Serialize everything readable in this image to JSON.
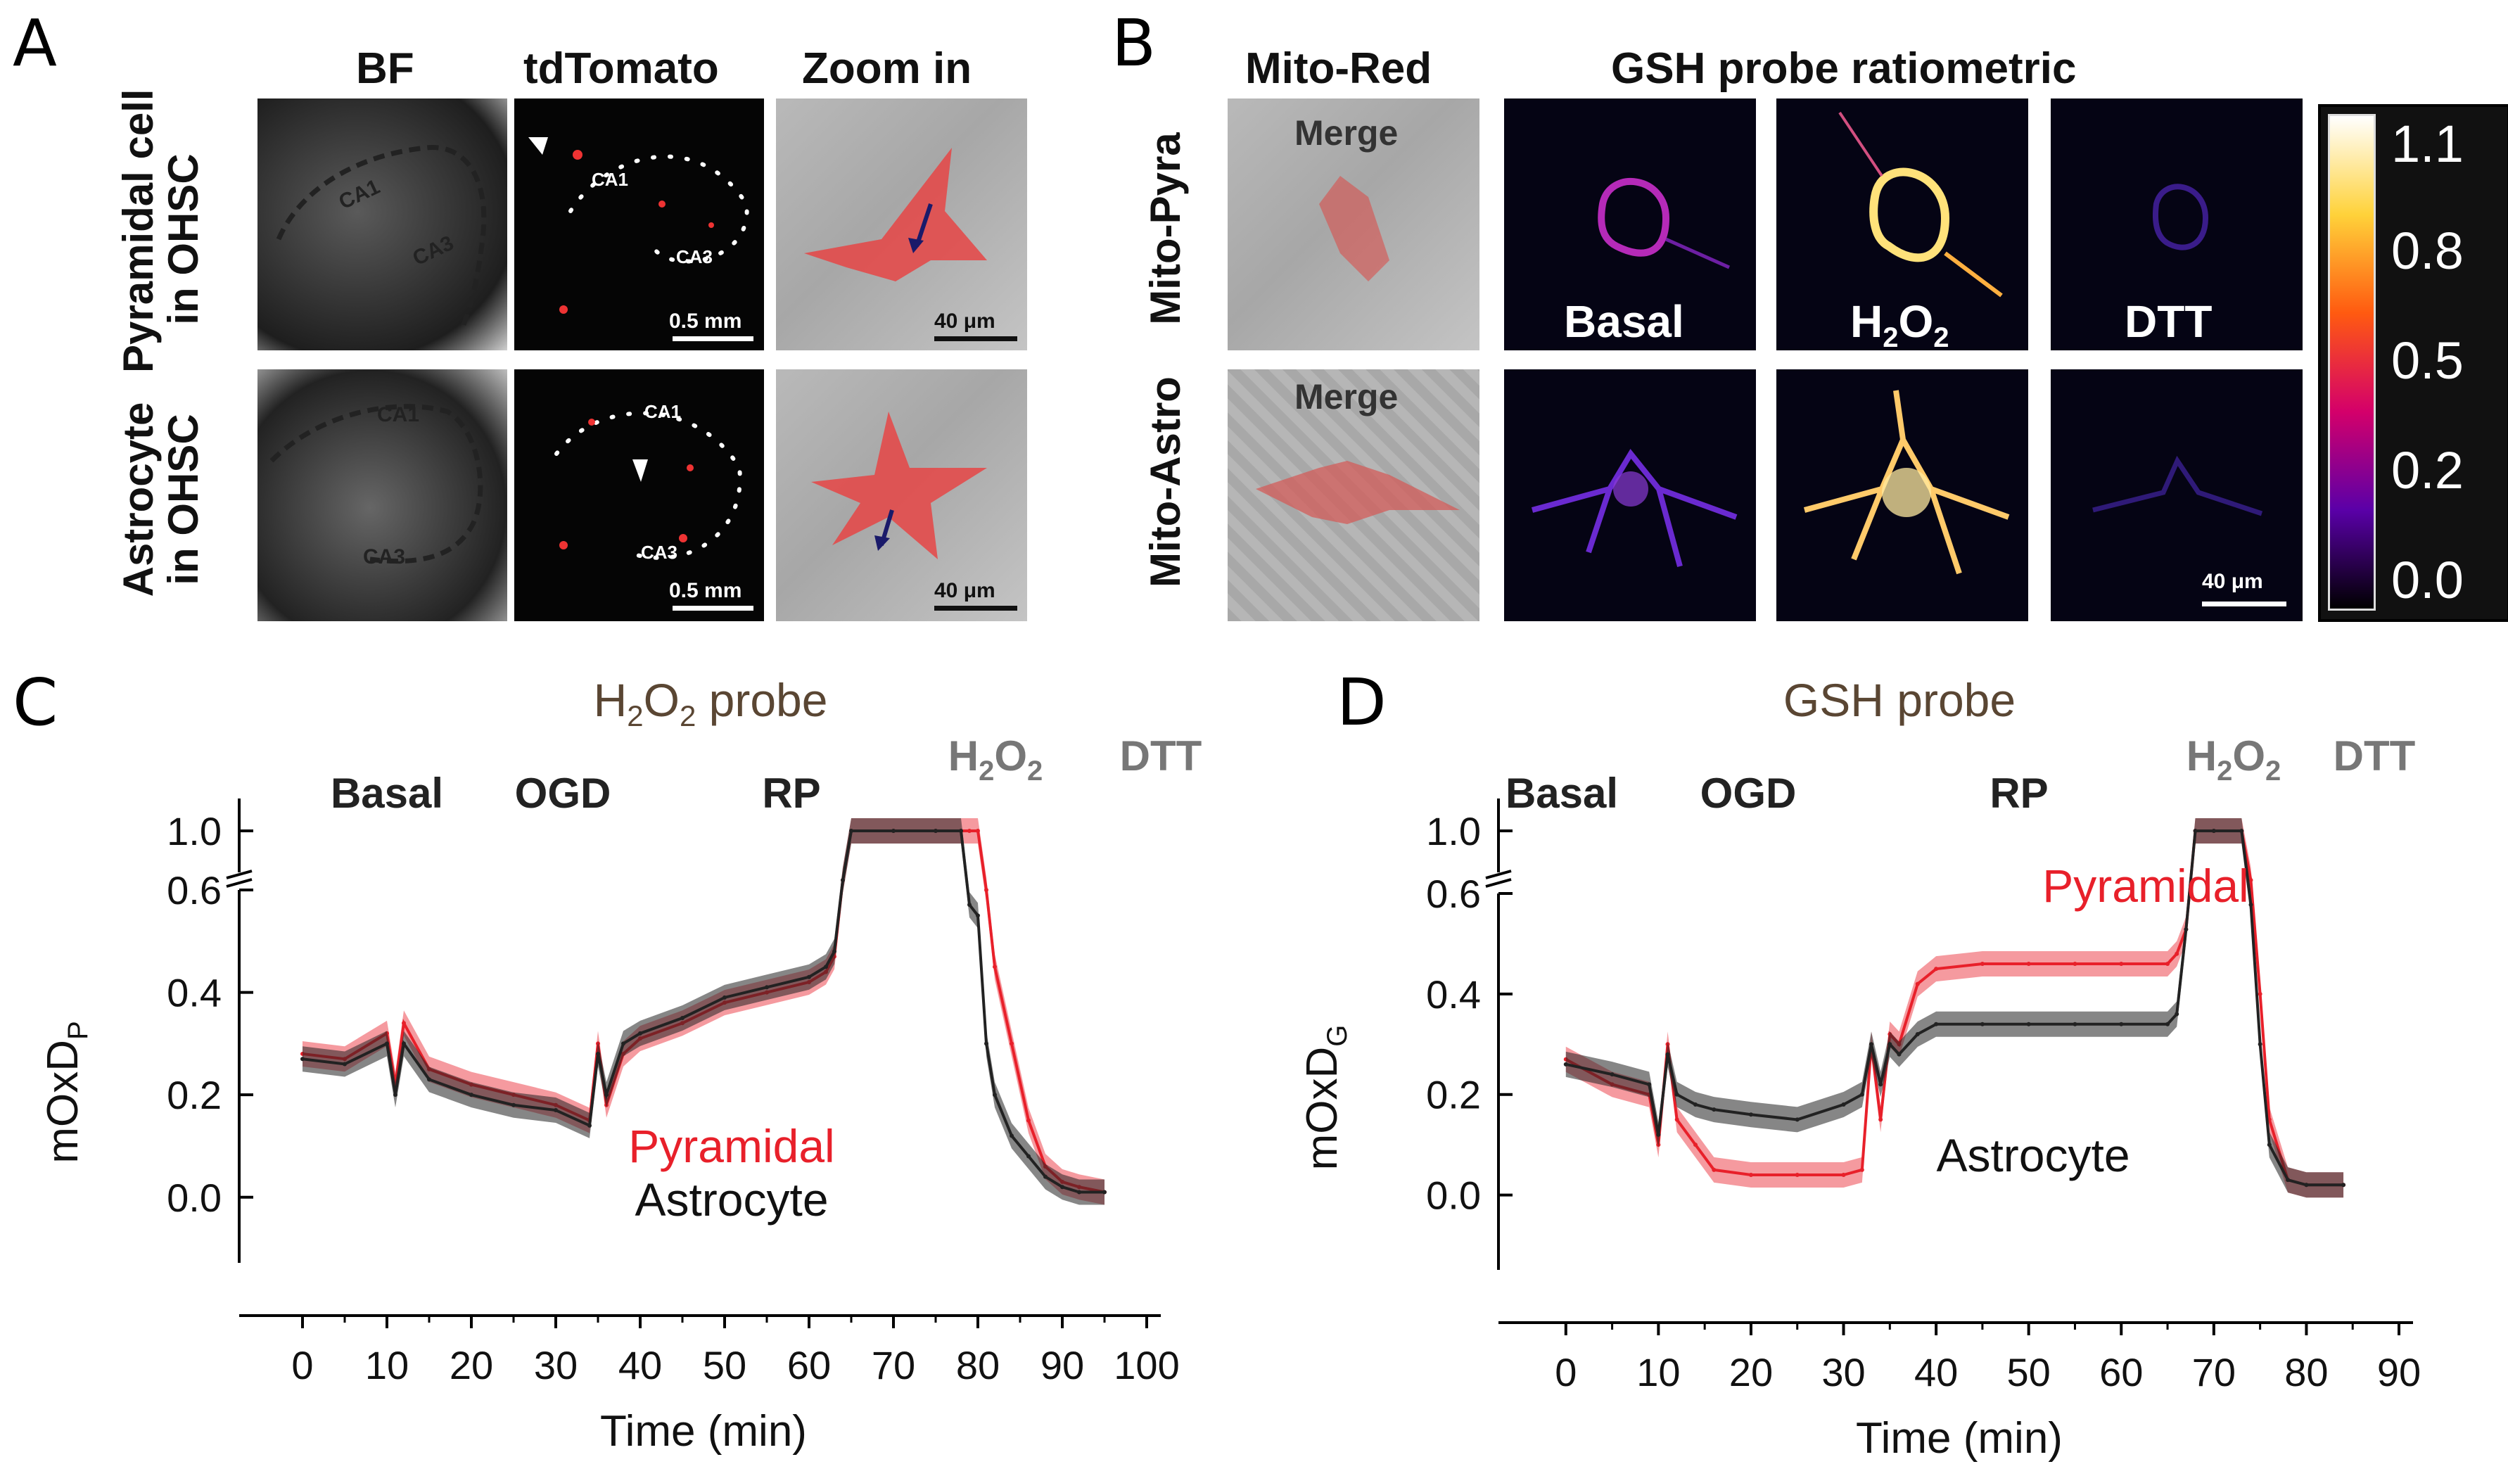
{
  "panel_labels": {
    "a": "A",
    "b": "B",
    "c": "C",
    "d": "D"
  },
  "panel_a": {
    "col_headers": [
      "BF",
      "tdTomato",
      "Zoom in"
    ],
    "row_labels": [
      {
        "line1": "Pyramidal cell",
        "line2": "in OHSC"
      },
      {
        "line1": "Astrocyte",
        "line2": "in OHSC"
      }
    ],
    "region_labels": {
      "ca1": "CA1",
      "ca3": "CA3"
    },
    "scale_tomato": "0.5 mm",
    "scale_zoom": "40 μm"
  },
  "panel_b": {
    "header_left": "Mito-Red",
    "header_right": "GSH probe ratiometric",
    "row_labels": [
      "Mito-Pyra",
      "Mito-Astro"
    ],
    "merge": "Merge",
    "conditions": {
      "basal": "Basal",
      "h2o2_main": "H",
      "h2o2_sub1": "2",
      "h2o2_mid": "O",
      "h2o2_sub2": "2",
      "dtt": "DTT"
    },
    "scale": "40 μm",
    "colorbar_ticks": [
      "1.1",
      "0.8",
      "0.5",
      "0.2",
      "0.0"
    ],
    "colors": {
      "low": "#000000",
      "mid1": "#5a00a8",
      "mid2": "#d4006a",
      "mid3": "#ff5a10",
      "high1": "#ffd23a",
      "high2": "#ffffff"
    }
  },
  "chart_data": [
    {
      "type": "line",
      "title": {
        "main": "H",
        "sub1": "2",
        "mid": "O",
        "sub2": "2",
        "rest": " probe"
      },
      "phases": {
        "basal": "Basal",
        "ogd": "OGD",
        "rp": "RP",
        "h2o2_main": "H",
        "h2o2_sub1": "2",
        "h2o2_mid": "O",
        "h2o2_sub2": "2",
        "dtt": "DTT"
      },
      "xlabel": "Time (min)",
      "ylabel": {
        "main": "mOxD",
        "sub": "P"
      },
      "xlim": [
        -5,
        100
      ],
      "x_ticks": [
        0,
        10,
        20,
        30,
        40,
        50,
        60,
        70,
        80,
        90,
        100
      ],
      "y_ticks_lower": [
        "0.0",
        "0.2",
        "0.4",
        "0.6"
      ],
      "y_tick_upper": "1.0",
      "ylim_lower": [
        -0.08,
        0.6
      ],
      "ylim_upper": [
        0.93,
        1.03
      ],
      "legend": {
        "pyramidal": "Pyramidal",
        "astrocyte": "Astrocyte"
      },
      "series": [
        {
          "name": "Pyramidal",
          "color": "#e8202a",
          "x": [
            0,
            5,
            10,
            11,
            12,
            15,
            20,
            25,
            30,
            34,
            35,
            36,
            38,
            40,
            45,
            50,
            55,
            60,
            62,
            63,
            64,
            65,
            70,
            75,
            78,
            79,
            80,
            81,
            82,
            84,
            86,
            88,
            90,
            92,
            95
          ],
          "y": [
            0.28,
            0.27,
            0.32,
            0.22,
            0.34,
            0.25,
            0.22,
            0.2,
            0.18,
            0.15,
            0.3,
            0.18,
            0.28,
            0.31,
            0.34,
            0.38,
            0.4,
            0.42,
            0.44,
            0.47,
            0.9,
            1.0,
            1.0,
            1.0,
            1.0,
            1.0,
            1.0,
            0.75,
            0.45,
            0.3,
            0.15,
            0.06,
            0.03,
            0.02,
            0.01
          ]
        },
        {
          "name": "Astrocyte",
          "color": "#222222",
          "x": [
            0,
            5,
            10,
            11,
            12,
            15,
            20,
            25,
            30,
            34,
            35,
            36,
            38,
            40,
            45,
            50,
            55,
            60,
            62,
            63,
            64,
            65,
            70,
            75,
            78,
            79,
            80,
            81,
            82,
            84,
            86,
            88,
            90,
            92,
            95
          ],
          "y": [
            0.27,
            0.26,
            0.3,
            0.2,
            0.3,
            0.23,
            0.2,
            0.18,
            0.17,
            0.14,
            0.28,
            0.2,
            0.3,
            0.32,
            0.35,
            0.39,
            0.41,
            0.43,
            0.45,
            0.48,
            0.9,
            1.0,
            1.0,
            1.0,
            1.0,
            0.85,
            0.55,
            0.3,
            0.2,
            0.12,
            0.08,
            0.04,
            0.02,
            0.01,
            0.01
          ]
        }
      ]
    },
    {
      "type": "line",
      "title": {
        "main": "GSH probe"
      },
      "phases": {
        "basal": "Basal",
        "ogd": "OGD",
        "rp": "RP",
        "h2o2_main": "H",
        "h2o2_sub1": "2",
        "h2o2_mid": "O",
        "h2o2_sub2": "2",
        "dtt": "DTT"
      },
      "xlabel": "Time (min)",
      "ylabel": {
        "main": "mOxD",
        "sub": "G"
      },
      "xlim": [
        -5,
        90
      ],
      "x_ticks": [
        0,
        10,
        20,
        30,
        40,
        50,
        60,
        70,
        80,
        90
      ],
      "y_ticks_lower": [
        "0.0",
        "0.2",
        "0.4",
        "0.6"
      ],
      "y_tick_upper": "1.0",
      "ylim_lower": [
        -0.1,
        0.6
      ],
      "ylim_upper": [
        0.93,
        1.03
      ],
      "legend": {
        "pyramidal": "Pyramidal",
        "astrocyte": "Astrocyte"
      },
      "series": [
        {
          "name": "Pyramidal",
          "color": "#e8202a",
          "x": [
            0,
            5,
            9,
            10,
            11,
            12,
            14,
            16,
            20,
            25,
            30,
            32,
            33,
            34,
            35,
            36,
            38,
            40,
            45,
            50,
            55,
            60,
            65,
            66,
            67,
            68,
            70,
            73,
            74,
            75,
            76,
            78,
            80,
            84
          ],
          "y": [
            0.27,
            0.22,
            0.2,
            0.1,
            0.3,
            0.15,
            0.1,
            0.05,
            0.04,
            0.04,
            0.04,
            0.05,
            0.3,
            0.15,
            0.32,
            0.3,
            0.42,
            0.45,
            0.46,
            0.46,
            0.46,
            0.46,
            0.46,
            0.48,
            0.8,
            1.0,
            1.0,
            1.0,
            0.9,
            0.4,
            0.15,
            0.03,
            0.02,
            0.02
          ]
        },
        {
          "name": "Astrocyte",
          "color": "#222222",
          "x": [
            0,
            5,
            9,
            10,
            11,
            12,
            14,
            16,
            20,
            25,
            30,
            32,
            33,
            34,
            35,
            36,
            38,
            40,
            45,
            50,
            55,
            60,
            65,
            66,
            67,
            68,
            70,
            73,
            74,
            75,
            76,
            78,
            80,
            84
          ],
          "y": [
            0.26,
            0.24,
            0.22,
            0.12,
            0.28,
            0.2,
            0.18,
            0.17,
            0.16,
            0.15,
            0.18,
            0.2,
            0.3,
            0.22,
            0.3,
            0.28,
            0.32,
            0.34,
            0.34,
            0.34,
            0.34,
            0.34,
            0.34,
            0.36,
            0.8,
            1.0,
            1.0,
            1.0,
            0.85,
            0.3,
            0.1,
            0.03,
            0.02,
            0.02
          ]
        }
      ]
    }
  ]
}
